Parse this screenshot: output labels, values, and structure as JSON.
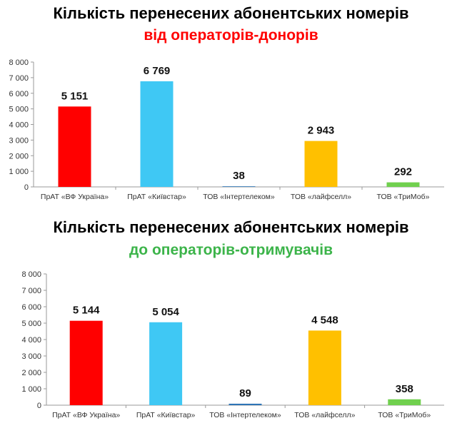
{
  "chart_data": [
    {
      "type": "bar",
      "title": "Кількість  перенесених абонентських номерів",
      "subtitle": "від операторів-донорів",
      "categories": [
        "ПрАТ «ВФ Україна»",
        "ПрАТ «Київстар»",
        "ТОВ «Інтертелеком»",
        "ТОВ «лайфселл»",
        "ТОВ «ТриМоб»"
      ],
      "values": [
        5151,
        6769,
        38,
        2943,
        292
      ],
      "data_labels": [
        "5 151",
        "6 769",
        "38",
        "2 943",
        "292"
      ],
      "ylim": [
        0,
        8000
      ],
      "yticks": [
        "0",
        "1 000",
        "2 000",
        "3 000",
        "4 000",
        "5 000",
        "6 000",
        "7 000",
        "8 000"
      ],
      "colors": [
        "#ff0000",
        "#3fc8f4",
        "#2e75b6",
        "#ffc000",
        "#70d04e"
      ],
      "subtitle_color": "#ff0000",
      "xlabel": "",
      "ylabel": "",
      "grid": false
    },
    {
      "type": "bar",
      "title": "Кількість  перенесених абонентських номерів",
      "subtitle": "до операторів-отримувачів",
      "categories": [
        "ПрАТ «ВФ Україна»",
        "ПрАТ «Київстар»",
        "ТОВ «Інтертелеком»",
        "ТОВ «лайфселл»",
        "ТОВ «ТриМоб»"
      ],
      "values": [
        5144,
        5054,
        89,
        4548,
        358
      ],
      "data_labels": [
        "5 144",
        "5 054",
        "89",
        "4 548",
        "358"
      ],
      "ylim": [
        0,
        8000
      ],
      "yticks": [
        "0",
        "1 000",
        "2 000",
        "3 000",
        "4 000",
        "5 000",
        "6 000",
        "7 000",
        "8 000"
      ],
      "colors": [
        "#ff0000",
        "#3fc8f4",
        "#2e75b6",
        "#ffc000",
        "#70d04e"
      ],
      "subtitle_color": "#3cb44a",
      "xlabel": "",
      "ylabel": "",
      "grid": false
    }
  ]
}
